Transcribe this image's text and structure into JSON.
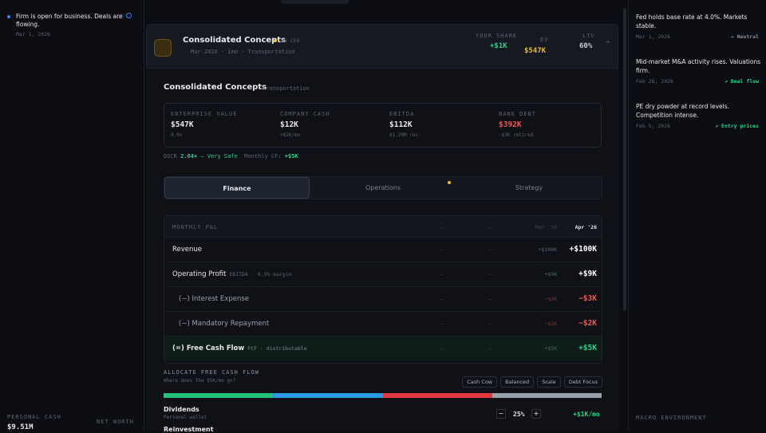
{
  "sidebar": {
    "status": "Firm is open for business. Deals are flowing.",
    "date": "Mar 1, 2026",
    "personal_cash_label": "PERSONAL CASH",
    "personal_cash": "$9.51M",
    "net_worth_label": "NET WORTH"
  },
  "header": {
    "name": "Consolidated Concepts",
    "ceo": "no CEO",
    "meta": "Mar 2026 · 1mo · Transportation",
    "share_label": "YOUR SHARE",
    "share": "+$1K",
    "ev_label": "EV",
    "ev": "$547K",
    "ltv_label": "LTV",
    "ltv": "60%"
  },
  "detail": {
    "name": "Consolidated Concepts",
    "sector": "Transportation",
    "metrics": [
      {
        "label": "ENTERPRISE VALUE",
        "value": "$547K",
        "sub": "4.9×"
      },
      {
        "label": "COMPANY CASH",
        "value": "$12K",
        "sub": "+$1K/mo"
      },
      {
        "label": "EBITDA",
        "value": "$112K",
        "sub": "$1.20M rev"
      },
      {
        "label": "BANK DEBT",
        "value": "$392K",
        "sub": "-$3K retired"
      }
    ],
    "dscr_label": "DSCR",
    "dscr": "2.04×",
    "dscr_note": "— Very Safe",
    "cf_label": "Monthly CF:",
    "cf": "+$5K"
  },
  "tabs": [
    "Finance",
    "Operations",
    "Strategy"
  ],
  "table": {
    "title": "MONTHLY P&L",
    "columns": [
      "—",
      "—",
      "Mar '26",
      "Apr '26"
    ],
    "rows": [
      {
        "label": "Revenue",
        "note": null,
        "cells": [
          "—",
          "—",
          "+$100K",
          "+$100K"
        ]
      },
      {
        "label": "Operating Profit",
        "note": "EBITDA · 9.3% margin",
        "cells": [
          "—",
          "—",
          "+$9K",
          "+$9K"
        ]
      },
      {
        "label": "(−) Interest Expense",
        "note": null,
        "cells": [
          "—",
          "—",
          "−$3K",
          "−$3K"
        ]
      },
      {
        "label": "(−) Mandatory Repayment",
        "note": null,
        "cells": [
          "—",
          "—",
          "−$2K",
          "−$2K"
        ]
      },
      {
        "label": "(=) Free Cash Flow",
        "note": "FCF · distributable",
        "cells": [
          "—",
          "—",
          "+$5K",
          "+$5K"
        ]
      }
    ]
  },
  "allocation": {
    "title": "ALLOCATE FREE CASH FLOW",
    "subtitle": "Where does the $5K/mo go?",
    "presets": [
      "Cash Cow",
      "Balanced",
      "Scale",
      "Debt Focus"
    ],
    "segments": [
      {
        "value": 25,
        "color": "#22c07a"
      },
      {
        "value": 25,
        "color": "#2b9be0"
      },
      {
        "value": 25,
        "color": "#e0383e"
      },
      {
        "value": 25,
        "color": "#9aa0ab"
      }
    ],
    "dividends": {
      "label": "Dividends",
      "sub": "Personal wallet",
      "percent": "25%",
      "amount": "+$1K/mo"
    },
    "next": "Reinvestment"
  },
  "news": [
    {
      "text": "Fed holds base rate at 4.0%. Markets stable.",
      "date": "Mar 1, 2026",
      "tag": "→ Neutral"
    },
    {
      "text": "Mid-market M&A activity rises. Valuations firm.",
      "date": "Feb 26, 2026",
      "tag": "↗ Deal flow"
    },
    {
      "text": "PE dry powder at record levels. Competition intense.",
      "date": "Feb 5, 2026",
      "tag": "↗ Entry prices"
    }
  ],
  "macro_label": "MACRO ENVIRONMENT"
}
